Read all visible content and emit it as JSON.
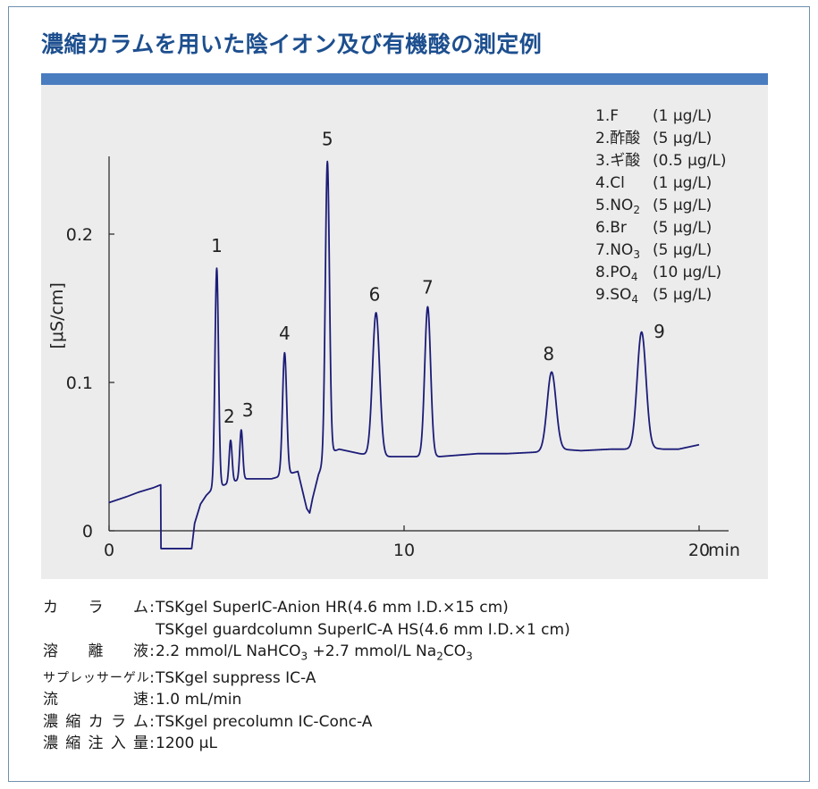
{
  "header": {
    "title": "濃縮カラムを用いた陰イオン及び有機酸の測定例"
  },
  "colors": {
    "title_text": "#1d4f8f",
    "title_bar": "#4a7cc0",
    "panel_bg": "#ececec",
    "trace": "#1c1c78",
    "frame": "#6f8fae"
  },
  "chart_data": {
    "type": "line",
    "ylabel": "[μS/cm]",
    "xunit": "min",
    "xlim": [
      0,
      21
    ],
    "ylim": [
      0,
      0.25
    ],
    "xticks": [
      {
        "value": 0,
        "label": "0"
      },
      {
        "value": 10,
        "label": "10"
      },
      {
        "value": 20,
        "label": "20"
      }
    ],
    "yticks": [
      {
        "value": 0,
        "label": "0"
      },
      {
        "value": 0.1,
        "label": "0.1"
      },
      {
        "value": 0.2,
        "label": "0.2"
      }
    ],
    "baseline_points": [
      [
        0,
        0.019
      ],
      [
        0.3,
        0.021
      ],
      [
        0.6,
        0.023
      ],
      [
        1.0,
        0.026
      ],
      [
        1.5,
        0.029
      ],
      [
        1.75,
        0.031
      ],
      [
        1.76,
        -0.012
      ],
      [
        2.8,
        -0.012
      ],
      [
        2.9,
        0.005
      ],
      [
        3.1,
        0.018
      ],
      [
        3.3,
        0.024
      ],
      [
        3.5,
        0.028
      ],
      [
        4.2,
        0.033
      ],
      [
        4.5,
        0.035
      ],
      [
        5.5,
        0.035
      ],
      [
        6.4,
        0.04
      ],
      [
        6.7,
        0.015
      ],
      [
        6.8,
        0.012
      ],
      [
        6.9,
        0.022
      ],
      [
        7.1,
        0.038
      ],
      [
        7.4,
        0.052
      ],
      [
        7.8,
        0.055
      ],
      [
        8.5,
        0.052
      ],
      [
        9.2,
        0.05
      ],
      [
        10.0,
        0.05
      ],
      [
        11.2,
        0.05
      ],
      [
        12.5,
        0.052
      ],
      [
        13.5,
        0.052
      ],
      [
        14.5,
        0.053
      ],
      [
        15.3,
        0.055
      ],
      [
        16.0,
        0.054
      ],
      [
        17.0,
        0.055
      ],
      [
        17.8,
        0.055
      ],
      [
        18.3,
        0.056
      ],
      [
        18.8,
        0.055
      ],
      [
        19.3,
        0.055
      ],
      [
        20.0,
        0.058
      ]
    ],
    "peaks": [
      {
        "id": "1",
        "rt": 3.65,
        "height": 0.177,
        "width": 0.06
      },
      {
        "id": "2",
        "rt": 4.12,
        "height": 0.061,
        "width": 0.05
      },
      {
        "id": "3",
        "rt": 4.48,
        "height": 0.068,
        "width": 0.05
      },
      {
        "id": "4",
        "rt": 5.95,
        "height": 0.12,
        "width": 0.07
      },
      {
        "id": "5",
        "rt": 7.4,
        "height": 0.249,
        "width": 0.07
      },
      {
        "id": "6",
        "rt": 9.05,
        "height": 0.147,
        "width": 0.12
      },
      {
        "id": "7",
        "rt": 10.8,
        "height": 0.151,
        "width": 0.1
      },
      {
        "id": "8",
        "rt": 15.0,
        "height": 0.107,
        "width": 0.15
      },
      {
        "id": "9",
        "rt": 18.05,
        "height": 0.134,
        "width": 0.15
      }
    ],
    "peak_labels": [
      {
        "text": "1",
        "rt": 3.65,
        "y": 0.188
      },
      {
        "text": "2",
        "rt": 4.07,
        "y": 0.073
      },
      {
        "text": "3",
        "rt": 4.7,
        "y": 0.077
      },
      {
        "text": "4",
        "rt": 5.95,
        "y": 0.129
      },
      {
        "text": "5",
        "rt": 7.4,
        "y": 0.26
      },
      {
        "text": "6",
        "rt": 9.0,
        "y": 0.155
      },
      {
        "text": "7",
        "rt": 10.8,
        "y": 0.16
      },
      {
        "text": "8",
        "rt": 14.9,
        "y": 0.115
      },
      {
        "text": "9",
        "rt": 18.65,
        "y": 0.13
      }
    ],
    "legend": [
      {
        "num": "1.",
        "name": "F",
        "sub": "",
        "conc": "(1 μg/L)"
      },
      {
        "num": "2.",
        "name": "酢酸",
        "sub": "",
        "conc": "(5 μg/L)"
      },
      {
        "num": "3.",
        "name": "ギ酸",
        "sub": "",
        "conc": "(0.5 μg/L)"
      },
      {
        "num": "4.",
        "name": "Cl",
        "sub": "",
        "conc": "(1 μg/L)"
      },
      {
        "num": "5.",
        "name": "NO",
        "sub": "2",
        "conc": "(5 μg/L)"
      },
      {
        "num": "6.",
        "name": "Br",
        "sub": "",
        "conc": "(5 μg/L)"
      },
      {
        "num": "7.",
        "name": "NO",
        "sub": "3",
        "conc": "(5 μg/L)"
      },
      {
        "num": "8.",
        "name": "PO",
        "sub": "4",
        "conc": "(10 μg/L)"
      },
      {
        "num": "9.",
        "name": "SO",
        "sub": "4",
        "conc": "(5 μg/L)"
      }
    ],
    "legend_placement": "top-right",
    "grid": false
  },
  "conditions": {
    "column_label": "カ　ラ　ム",
    "column_value_1": "TSKgel SuperIC-Anion HR(4.6 mm I.D.×15 cm)",
    "column_value_2": "TSKgel guardcolumn SuperIC-A HS(4.6 mm I.D.×1 cm)",
    "eluent_label": "溶　離　液",
    "eluent_value_a": "2.2 mmol/L NaHCO",
    "eluent_sub_a": "3",
    "eluent_value_b": " +2.7 mmol/L Na",
    "eluent_sub_b": "2",
    "eluent_value_c": "CO",
    "eluent_sub_c": "3",
    "suppressor_label": "サプレッサーゲル",
    "suppressor_value": "TSKgel suppress IC-A",
    "flow_label": "流　　　速",
    "flow_value": "1.0 mL/min",
    "concentrator_label": "濃縮カラム",
    "concentrator_value": "TSKgel precolumn IC-Conc-A",
    "injection_label": "濃縮注入量",
    "injection_value": "1200 μL",
    "colon": ":"
  }
}
